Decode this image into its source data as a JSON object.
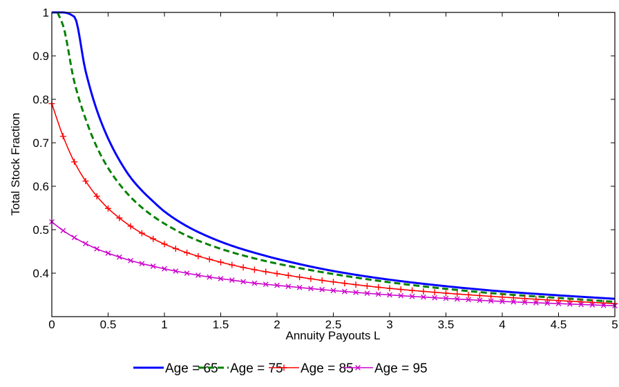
{
  "chart_data": {
    "type": "line",
    "title": "",
    "xlabel": "Annuity Payouts L",
    "ylabel": "Total Stock Fraction",
    "xlim": [
      0,
      5
    ],
    "ylim": [
      0.3,
      1.0
    ],
    "xticks": [
      "0",
      "0.5",
      "1",
      "1.5",
      "2",
      "2.5",
      "3",
      "3.5",
      "4",
      "4.5",
      "5"
    ],
    "yticks": [
      "0.4",
      "0.5",
      "0.6",
      "0.7",
      "0.8",
      "0.9",
      "1"
    ],
    "grid": false,
    "legend_position": "bottom",
    "series": [
      {
        "name": "Age = 65",
        "color": "#0000ff",
        "line_style": "solid",
        "marker": "none",
        "x": [
          0,
          0.1,
          0.2,
          0.3,
          0.4,
          0.5,
          0.6,
          0.7,
          0.8,
          0.9,
          1.0,
          1.2,
          1.4,
          1.6,
          1.8,
          2.0,
          2.5,
          3.0,
          3.5,
          4.0,
          4.5,
          5.0
        ],
        "y": [
          1.0,
          1.0,
          0.99,
          0.865,
          0.775,
          0.71,
          0.66,
          0.62,
          0.59,
          0.565,
          0.542,
          0.508,
          0.483,
          0.463,
          0.447,
          0.433,
          0.405,
          0.385,
          0.37,
          0.358,
          0.349,
          0.341
        ]
      },
      {
        "name": "Age = 75",
        "color": "#008000",
        "line_style": "dashed",
        "marker": "none",
        "x": [
          0.05,
          0.1,
          0.2,
          0.3,
          0.4,
          0.5,
          0.6,
          0.7,
          0.8,
          0.9,
          1.0,
          1.2,
          1.4,
          1.6,
          1.8,
          2.0,
          2.5,
          3.0,
          3.5,
          4.0,
          4.5,
          5.0
        ],
        "y": [
          1.0,
          0.97,
          0.84,
          0.755,
          0.69,
          0.642,
          0.605,
          0.575,
          0.551,
          0.531,
          0.514,
          0.486,
          0.465,
          0.448,
          0.434,
          0.422,
          0.398,
          0.379,
          0.364,
          0.352,
          0.343,
          0.334
        ]
      },
      {
        "name": "Age = 85",
        "color": "#ff0000",
        "line_style": "solid",
        "marker": "+",
        "x": [
          0,
          0.1,
          0.2,
          0.3,
          0.4,
          0.5,
          0.6,
          0.7,
          0.8,
          0.9,
          1.0,
          1.2,
          1.4,
          1.6,
          1.8,
          2.0,
          2.5,
          3.0,
          3.5,
          4.0,
          4.5,
          5.0
        ],
        "y": [
          0.79,
          0.715,
          0.656,
          0.612,
          0.577,
          0.549,
          0.527,
          0.508,
          0.492,
          0.479,
          0.467,
          0.447,
          0.432,
          0.419,
          0.408,
          0.399,
          0.38,
          0.365,
          0.354,
          0.345,
          0.337,
          0.33
        ]
      },
      {
        "name": "Age = 95",
        "color": "#cc00cc",
        "line_style": "solid",
        "marker": "x",
        "x": [
          0,
          0.1,
          0.2,
          0.3,
          0.4,
          0.5,
          0.6,
          0.7,
          0.8,
          0.9,
          1.0,
          1.2,
          1.4,
          1.6,
          1.8,
          2.0,
          2.5,
          3.0,
          3.5,
          4.0,
          4.5,
          5.0
        ],
        "y": [
          0.518,
          0.498,
          0.482,
          0.468,
          0.456,
          0.446,
          0.437,
          0.429,
          0.422,
          0.416,
          0.41,
          0.4,
          0.391,
          0.384,
          0.377,
          0.372,
          0.36,
          0.35,
          0.342,
          0.335,
          0.33,
          0.325
        ]
      }
    ]
  }
}
